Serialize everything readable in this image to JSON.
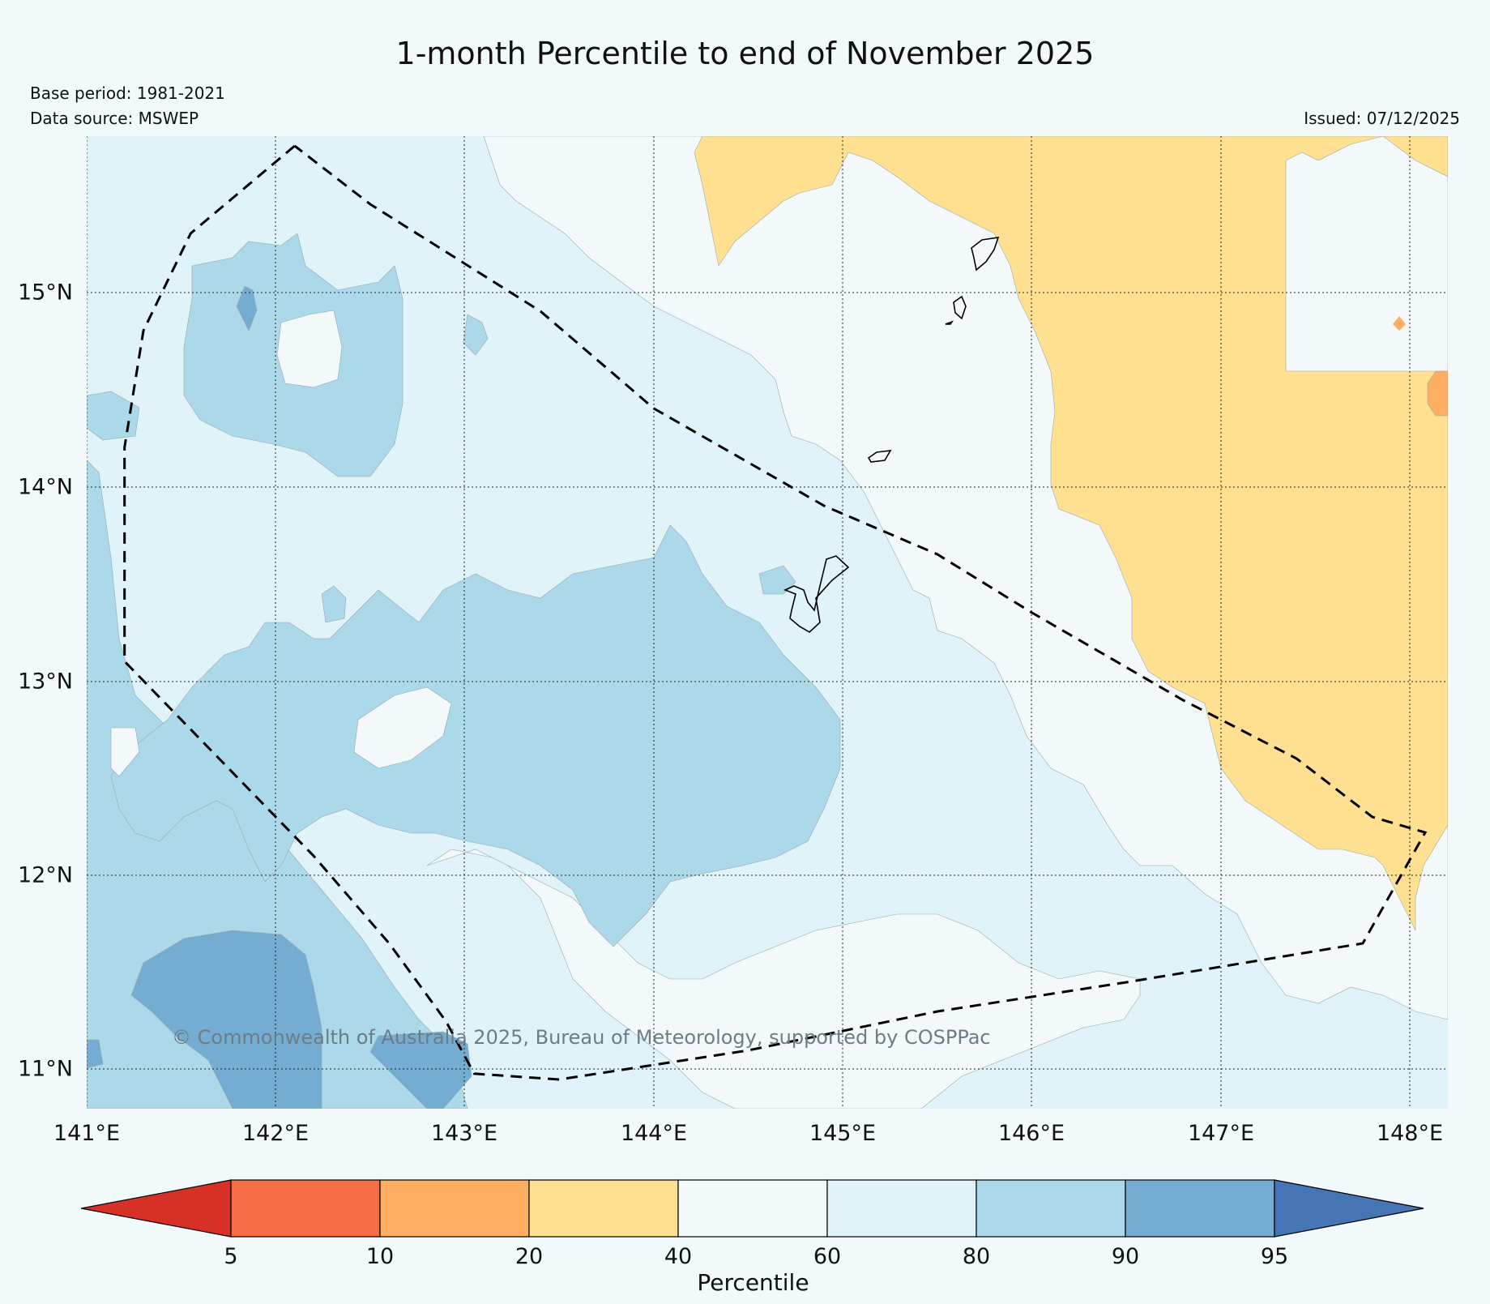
{
  "header": {
    "title": "1-month Percentile to end of November 2025",
    "base_period": "Base period: 1981-2021",
    "data_source": "Data source: MSWEP",
    "issued": "Issued: 07/12/2025"
  },
  "map": {
    "lat_labels": [
      "15°N",
      "14°N",
      "13°N",
      "12°N",
      "11°N"
    ],
    "lon_labels": [
      "141°E",
      "142°E",
      "143°E",
      "144°E",
      "145°E",
      "146°E",
      "147°E",
      "148°E"
    ],
    "copyright": "© Commonwealth of Australia 2025, Bureau of Meteorology, supported by COSPPac",
    "extent": {
      "lon_min": 141.0,
      "lon_max": 148.2,
      "lat_min": 10.8,
      "lat_max": 15.8
    },
    "region_boundary_lonlat": [
      [
        142.1,
        15.75
      ],
      [
        141.55,
        15.3
      ],
      [
        141.3,
        14.8
      ],
      [
        141.2,
        14.2
      ],
      [
        141.2,
        13.5
      ],
      [
        141.2,
        13.1
      ],
      [
        141.6,
        12.7
      ],
      [
        142.2,
        12.1
      ],
      [
        142.6,
        11.65
      ],
      [
        142.9,
        11.25
      ],
      [
        143.05,
        10.98
      ],
      [
        143.5,
        10.95
      ],
      [
        144.5,
        11.1
      ],
      [
        145.5,
        11.3
      ],
      [
        146.5,
        11.45
      ],
      [
        147.75,
        11.65
      ],
      [
        148.08,
        12.22
      ],
      [
        147.8,
        12.3
      ],
      [
        147.4,
        12.6
      ],
      [
        146.8,
        12.9
      ],
      [
        146.0,
        13.35
      ],
      [
        145.5,
        13.65
      ],
      [
        144.9,
        13.9
      ],
      [
        144.0,
        14.4
      ],
      [
        143.4,
        14.9
      ],
      [
        142.5,
        15.45
      ],
      [
        142.1,
        15.75
      ]
    ]
  },
  "colorbar": {
    "label": "Percentile",
    "ticks": [
      "5",
      "10",
      "20",
      "40",
      "60",
      "80",
      "90",
      "95"
    ],
    "colors": {
      "lt5": "#d73027",
      "p5_10": "#f46d43",
      "p10_20": "#fdae61",
      "p20_40": "#fee090",
      "p40_60": "#f3f9fb",
      "p60_80": "#e0f3f8",
      "p80_90": "#abd9e9",
      "p90_95": "#74add1",
      "gt95": "#4575b4"
    }
  }
}
